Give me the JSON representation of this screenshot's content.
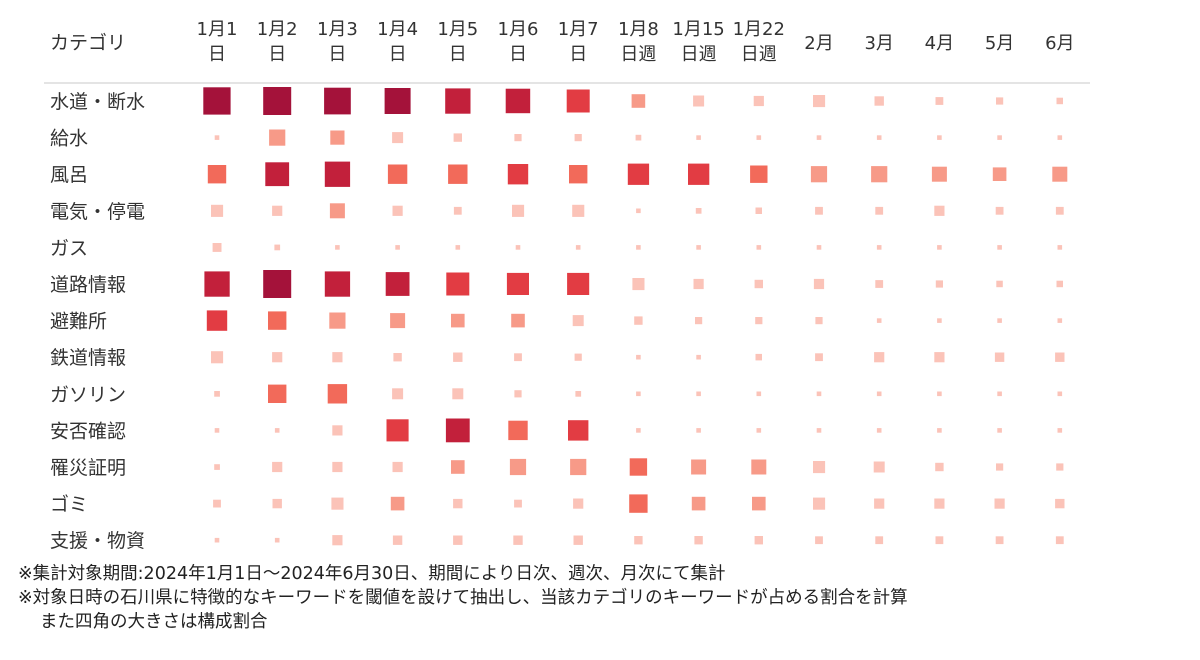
{
  "chart_data": {
    "type": "heatmap",
    "title": "",
    "row_header": "カテゴリ",
    "columns": [
      {
        "line1": "1月1",
        "line2": "日"
      },
      {
        "line1": "1月2",
        "line2": "日"
      },
      {
        "line1": "1月3",
        "line2": "日"
      },
      {
        "line1": "1月4",
        "line2": "日"
      },
      {
        "line1": "1月5",
        "line2": "日"
      },
      {
        "line1": "1月6",
        "line2": "日"
      },
      {
        "line1": "1月7",
        "line2": "日"
      },
      {
        "line1": "1月8",
        "line2": "日週"
      },
      {
        "line1": "1月15",
        "line2": "日週"
      },
      {
        "line1": "1月22",
        "line2": "日週"
      },
      {
        "line1": "2月",
        "line2": ""
      },
      {
        "line1": "3月",
        "line2": ""
      },
      {
        "line1": "4月",
        "line2": ""
      },
      {
        "line1": "5月",
        "line2": ""
      },
      {
        "line1": "6月",
        "line2": ""
      }
    ],
    "rows": [
      "水道・断水",
      "給水",
      "風呂",
      "電気・停電",
      "ガス",
      "道路情報",
      "避難所",
      "鉄道情報",
      "ガソリン",
      "安否確認",
      "罹災証明",
      "ゴミ",
      "支援・物資"
    ],
    "value_description": "構成割合 (relative share, 0-1; square size and color intensity)",
    "values": [
      [
        0.95,
        1.0,
        0.9,
        0.85,
        0.8,
        0.75,
        0.65,
        0.2,
        0.12,
        0.1,
        0.15,
        0.08,
        0.05,
        0.04,
        0.03
      ],
      [
        0.01,
        0.3,
        0.22,
        0.12,
        0.06,
        0.04,
        0.04,
        0.02,
        0.01,
        0.01,
        0.01,
        0.01,
        0.01,
        0.01,
        0.01
      ],
      [
        0.4,
        0.7,
        0.8,
        0.45,
        0.45,
        0.5,
        0.4,
        0.55,
        0.55,
        0.35,
        0.3,
        0.3,
        0.25,
        0.2,
        0.25
      ],
      [
        0.15,
        0.1,
        0.25,
        0.1,
        0.05,
        0.15,
        0.15,
        0.01,
        0.02,
        0.03,
        0.05,
        0.05,
        0.1,
        0.05,
        0.05
      ],
      [
        0.07,
        0.02,
        0.01,
        0.01,
        0.01,
        0.01,
        0.01,
        0.01,
        0.01,
        0.01,
        0.01,
        0.01,
        0.01,
        0.01,
        0.01
      ],
      [
        0.8,
        1.0,
        0.8,
        0.7,
        0.65,
        0.6,
        0.6,
        0.15,
        0.1,
        0.06,
        0.1,
        0.05,
        0.04,
        0.03,
        0.03
      ],
      [
        0.5,
        0.4,
        0.3,
        0.25,
        0.2,
        0.2,
        0.12,
        0.06,
        0.04,
        0.04,
        0.04,
        0.01,
        0.01,
        0.01,
        0.01
      ],
      [
        0.15,
        0.1,
        0.1,
        0.06,
        0.08,
        0.05,
        0.04,
        0.01,
        0.01,
        0.03,
        0.05,
        0.1,
        0.1,
        0.08,
        0.08
      ],
      [
        0.02,
        0.4,
        0.45,
        0.12,
        0.12,
        0.04,
        0.02,
        0.01,
        0.01,
        0.01,
        0.01,
        0.01,
        0.01,
        0.01,
        0.01
      ],
      [
        0.01,
        0.01,
        0.1,
        0.6,
        0.7,
        0.45,
        0.5,
        0.01,
        0.01,
        0.01,
        0.01,
        0.01,
        0.01,
        0.01,
        0.01
      ],
      [
        0.02,
        0.1,
        0.1,
        0.1,
        0.2,
        0.3,
        0.3,
        0.35,
        0.25,
        0.25,
        0.15,
        0.12,
        0.06,
        0.04,
        0.04
      ],
      [
        0.05,
        0.08,
        0.15,
        0.2,
        0.08,
        0.05,
        0.1,
        0.4,
        0.2,
        0.2,
        0.15,
        0.1,
        0.1,
        0.1,
        0.08
      ],
      [
        0.01,
        0.01,
        0.1,
        0.08,
        0.08,
        0.08,
        0.08,
        0.06,
        0.06,
        0.06,
        0.05,
        0.05,
        0.05,
        0.05,
        0.05
      ]
    ],
    "color_scale": [
      "#fbc3b8",
      "#f79a88",
      "#f26a5a",
      "#e23c43",
      "#c2203b",
      "#a4123a"
    ]
  },
  "notes": {
    "line1": "※集計対象期間:2024年1月1日～2024年6月30日、期間により日次、週次、月次にて集計",
    "line2": "※対象日時の石川県に特徴的なキーワードを閾値を設けて抽出し、当該カテゴリのキーワードが占める割合を計算",
    "line3": "また四角の大きさは構成割合"
  }
}
